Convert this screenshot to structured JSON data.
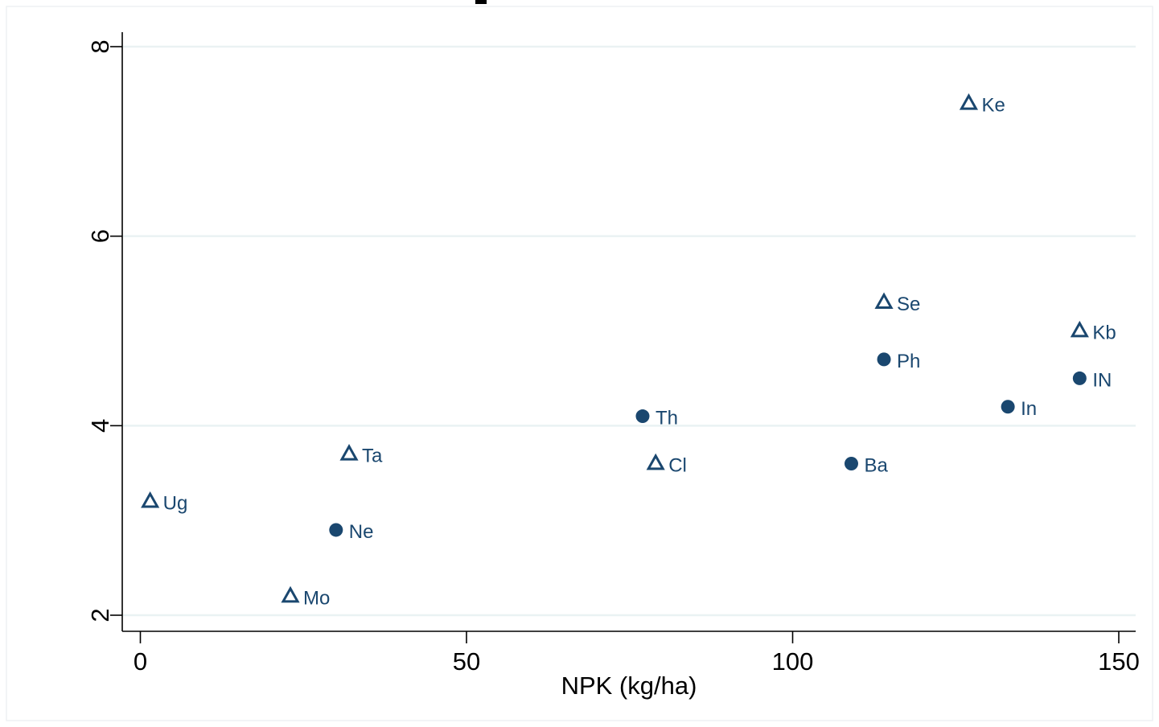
{
  "chart_data": {
    "type": "scatter",
    "title": "",
    "xlabel": "NPK (kg/ha)",
    "ylabel": "",
    "xlim": [
      -2.5,
      152.5
    ],
    "ylim": [
      1.8,
      8.2
    ],
    "xticks": [
      0,
      50,
      100,
      150
    ],
    "yticks": [
      2,
      4,
      6,
      8
    ],
    "grid": true,
    "legend": "none",
    "colors": {
      "marker": "#1a476f",
      "axis": "#000000",
      "grid": "#eaf2f3"
    },
    "series": [
      {
        "marker": "hollow-triangle",
        "points": [
          {
            "label": "Ke",
            "x": 127,
            "y": 7.4
          },
          {
            "label": "Se",
            "x": 114,
            "y": 5.3
          },
          {
            "label": "Kb",
            "x": 144,
            "y": 5.0
          },
          {
            "label": "Ta",
            "x": 32,
            "y": 3.7
          },
          {
            "label": "Cl",
            "x": 79,
            "y": 3.6
          },
          {
            "label": "Ug",
            "x": 1.5,
            "y": 3.2
          },
          {
            "label": "Mo",
            "x": 23,
            "y": 2.2
          }
        ]
      },
      {
        "marker": "filled-circle",
        "points": [
          {
            "label": "Ph",
            "x": 114,
            "y": 4.7
          },
          {
            "label": "IN",
            "x": 144,
            "y": 4.5
          },
          {
            "label": "In",
            "x": 133,
            "y": 4.2
          },
          {
            "label": "Th",
            "x": 77,
            "y": 4.1
          },
          {
            "label": "Ba",
            "x": 109,
            "y": 3.6
          },
          {
            "label": "Ne",
            "x": 30,
            "y": 2.9
          }
        ]
      }
    ]
  }
}
